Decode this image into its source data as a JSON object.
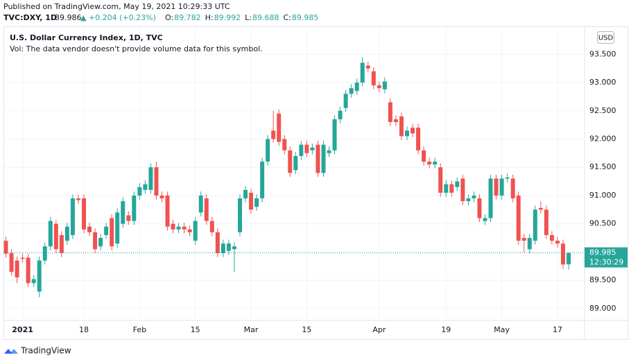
{
  "header": {
    "published": "Published on TradingView.com, May 19, 2021 10:29:33 UTC",
    "symbol": "TVC:DXY, 1D",
    "last": 89.986,
    "change": "▲ +0.204 (+0.23%)",
    "ohlc": [
      {
        "label": "O:",
        "value": 89.782
      },
      {
        "label": "H:",
        "value": 89.992
      },
      {
        "label": "L:",
        "value": 89.688
      },
      {
        "label": "C:",
        "value": 89.985
      }
    ]
  },
  "chart_data": {
    "type": "candlestick",
    "title": "U.S. Dollar Currency Index, 1D, TVC",
    "subtitle": "Vol: The data vendor doesn't provide volume data for this symbol.",
    "currency": "USD",
    "countdown": "12:30:29",
    "up_color": "#26a69a",
    "down_color": "#ef5350",
    "grid": true,
    "categories": [
      null,
      null,
      null,
      "2021",
      null,
      null,
      null,
      null,
      null,
      null,
      null,
      null,
      null,
      null,
      "18",
      null,
      null,
      null,
      null,
      null,
      null,
      null,
      null,
      null,
      "Feb",
      null,
      null,
      null,
      null,
      null,
      null,
      null,
      null,
      null,
      "15",
      null,
      null,
      null,
      null,
      null,
      null,
      null,
      null,
      null,
      "Mar",
      null,
      null,
      null,
      null,
      null,
      null,
      null,
      null,
      null,
      "15",
      null,
      null,
      null,
      null,
      null,
      null,
      null,
      null,
      null,
      null,
      null,
      null,
      "Apr",
      null,
      null,
      null,
      null,
      null,
      null,
      null,
      null,
      null,
      null,
      null,
      "19",
      null,
      null,
      null,
      null,
      null,
      null,
      null,
      null,
      null,
      "May",
      null,
      null,
      null,
      null,
      null,
      null,
      null,
      null,
      null,
      "17",
      null,
      null
    ],
    "open": [
      90.2,
      89.98,
      89.85,
      89.9,
      89.9,
      89.45,
      89.3,
      89.85,
      90.1,
      90.5,
      90.3,
      90.2,
      90.3,
      90.95,
      90.95,
      90.45,
      90.35,
      90.1,
      90.3,
      90.6,
      90.15,
      90.5,
      90.65,
      90.55,
      91.0,
      91.1,
      91.1,
      91.5,
      91.0,
      91.0,
      90.5,
      90.4,
      90.45,
      90.4,
      90.2,
      90.7,
      90.95,
      90.55,
      90.35,
      89.98,
      90.02,
      90.05,
      90.35,
      90.95,
      91.05,
      90.8,
      90.95,
      91.6,
      92.15,
      92.45,
      92.0,
      91.8,
      91.45,
      91.7,
      91.9,
      91.8,
      91.9,
      91.4,
      91.75,
      91.8,
      92.35,
      92.55,
      92.8,
      92.85,
      93.0,
      93.3,
      93.2,
      92.95,
      92.88,
      92.65,
      92.35,
      92.4,
      92.05,
      92.2,
      92.2,
      91.8,
      91.6,
      91.55,
      91.5,
      91.05,
      91.2,
      91.15,
      91.3,
      90.9,
      90.95,
      90.95,
      90.55,
      90.6,
      91.3,
      91.0,
      91.3,
      91.3,
      91.0,
      90.25,
      90.05,
      90.2,
      90.78,
      90.75,
      90.3,
      90.2,
      90.15,
      89.782
    ],
    "high": [
      90.27,
      90.05,
      89.92,
      89.97,
      89.97,
      89.59,
      89.92,
      90.17,
      90.62,
      90.57,
      90.37,
      90.52,
      91.02,
      91.02,
      91.02,
      90.52,
      90.42,
      90.32,
      90.52,
      90.67,
      90.77,
      90.97,
      90.72,
      91.07,
      91.22,
      91.27,
      91.57,
      91.6,
      91.07,
      91.07,
      90.57,
      90.52,
      90.52,
      90.47,
      90.62,
      91.07,
      91.02,
      90.62,
      90.42,
      90.22,
      90.22,
      90.17,
      91.02,
      91.17,
      91.12,
      91.02,
      91.67,
      92.07,
      92.5,
      92.52,
      92.07,
      91.87,
      91.77,
      91.97,
      91.97,
      91.92,
      91.97,
      91.97,
      91.87,
      92.42,
      92.57,
      92.87,
      92.97,
      93.07,
      93.45,
      93.37,
      93.27,
      93.02,
      93.09,
      92.72,
      92.42,
      92.47,
      92.22,
      92.27,
      92.27,
      91.87,
      91.67,
      91.67,
      91.57,
      91.27,
      91.27,
      91.32,
      91.37,
      91.02,
      91.07,
      91.02,
      90.67,
      91.37,
      91.37,
      91.37,
      91.39,
      91.37,
      91.07,
      90.32,
      90.32,
      90.82,
      90.9,
      90.82,
      90.37,
      90.27,
      90.22,
      89.992
    ],
    "low": [
      89.9,
      89.58,
      89.45,
      89.81,
      89.38,
      89.38,
      89.2,
      89.78,
      90.03,
      89.98,
      89.91,
      90.13,
      90.23,
      90.85,
      90.33,
      90.28,
      89.98,
      90.03,
      90.23,
      90.03,
      90.08,
      90.43,
      90.48,
      90.48,
      90.93,
      91.03,
      91.03,
      90.93,
      90.88,
      90.38,
      90.33,
      90.33,
      90.33,
      90.28,
      90.13,
      90.63,
      90.48,
      90.28,
      89.91,
      89.91,
      89.95,
      89.65,
      90.28,
      90.88,
      90.68,
      90.73,
      90.88,
      91.53,
      91.93,
      91.88,
      91.73,
      91.33,
      91.38,
      91.63,
      91.68,
      91.73,
      91.33,
      91.33,
      91.68,
      91.73,
      92.28,
      92.48,
      92.73,
      92.78,
      92.93,
      93.18,
      92.88,
      92.83,
      92.81,
      92.23,
      92.23,
      91.98,
      91.98,
      92.03,
      91.73,
      91.53,
      91.48,
      91.48,
      90.98,
      90.98,
      90.98,
      91.08,
      90.83,
      90.83,
      90.88,
      90.53,
      90.48,
      90.53,
      90.93,
      90.93,
      91.23,
      90.88,
      90.13,
      90.0,
      89.98,
      90.13,
      90.68,
      90.23,
      90.13,
      90.08,
      89.7,
      89.688
    ],
    "close": [
      89.97,
      89.65,
      89.55,
      89.88,
      89.45,
      89.52,
      89.85,
      90.1,
      90.55,
      90.05,
      89.98,
      90.45,
      90.95,
      90.92,
      90.4,
      90.35,
      90.05,
      90.25,
      90.45,
      90.1,
      90.7,
      90.9,
      90.55,
      91.0,
      91.15,
      91.2,
      91.5,
      91.0,
      90.95,
      90.45,
      90.4,
      90.45,
      90.4,
      90.35,
      90.55,
      91.0,
      90.55,
      90.35,
      89.98,
      90.15,
      90.15,
      90.1,
      90.95,
      91.1,
      90.75,
      90.95,
      91.6,
      92.0,
      92.0,
      91.95,
      91.8,
      91.4,
      91.7,
      91.9,
      91.75,
      91.85,
      91.4,
      91.9,
      91.8,
      92.35,
      92.5,
      92.8,
      92.9,
      93.0,
      93.35,
      93.25,
      92.95,
      92.9,
      93.02,
      92.3,
      92.3,
      92.05,
      92.15,
      92.1,
      91.8,
      91.6,
      91.55,
      91.6,
      91.05,
      91.2,
      91.05,
      91.25,
      90.9,
      90.95,
      91.0,
      90.6,
      90.6,
      91.3,
      91.0,
      91.3,
      91.32,
      90.95,
      90.2,
      90.2,
      90.25,
      90.75,
      90.75,
      90.3,
      90.2,
      90.15,
      89.78,
      89.985
    ],
    "ylim": [
      88.79,
      93.97
    ],
    "yticks": [
      {
        "value": 89,
        "label": "89.000"
      },
      {
        "value": 89.5,
        "label": "89.500"
      },
      {
        "value": 90,
        "label": "90.000"
      },
      {
        "value": 90.5,
        "label": "90.500"
      },
      {
        "value": 91,
        "label": "91.000"
      },
      {
        "value": 91.5,
        "label": "91.500"
      },
      {
        "value": 92,
        "label": "92.000"
      },
      {
        "value": 92.5,
        "label": "92.500"
      },
      {
        "value": 93,
        "label": "93.000"
      },
      {
        "value": 93.5,
        "label": "93.500"
      }
    ]
  },
  "footer": {
    "brand": "TradingView"
  }
}
